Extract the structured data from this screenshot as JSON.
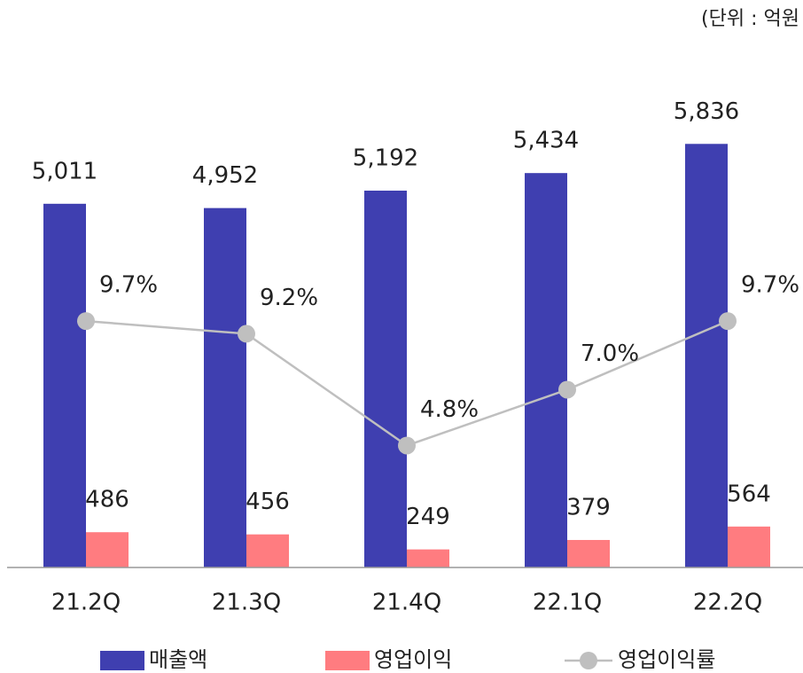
{
  "chart_data": {
    "type": "bar",
    "unit_note": "(단위 : 억원",
    "categories": [
      "21.2Q",
      "21.3Q",
      "21.4Q",
      "22.1Q",
      "22.2Q"
    ],
    "series": [
      {
        "name": "매출액",
        "color": "#3f3fb0",
        "values": [
          5011,
          4952,
          5192,
          5434,
          5836
        ],
        "value_labels": [
          "5,011",
          "4,952",
          "5,192",
          "5,434",
          "5,836"
        ]
      },
      {
        "name": "영업이익",
        "color": "#ff7c80",
        "values": [
          486,
          456,
          249,
          379,
          564
        ]
      },
      {
        "name": "영업이익률",
        "type": "line",
        "axis": "y2",
        "color": "#bfbfbf",
        "values": [
          9.7,
          9.2,
          4.8,
          7.0,
          9.7
        ],
        "value_labels": [
          "9.7%",
          "9.2%",
          "4.8%",
          "7.0%",
          "9.7%"
        ]
      }
    ],
    "ylim": [
      0,
      7000
    ],
    "y2lim": [
      0,
      20
    ]
  }
}
